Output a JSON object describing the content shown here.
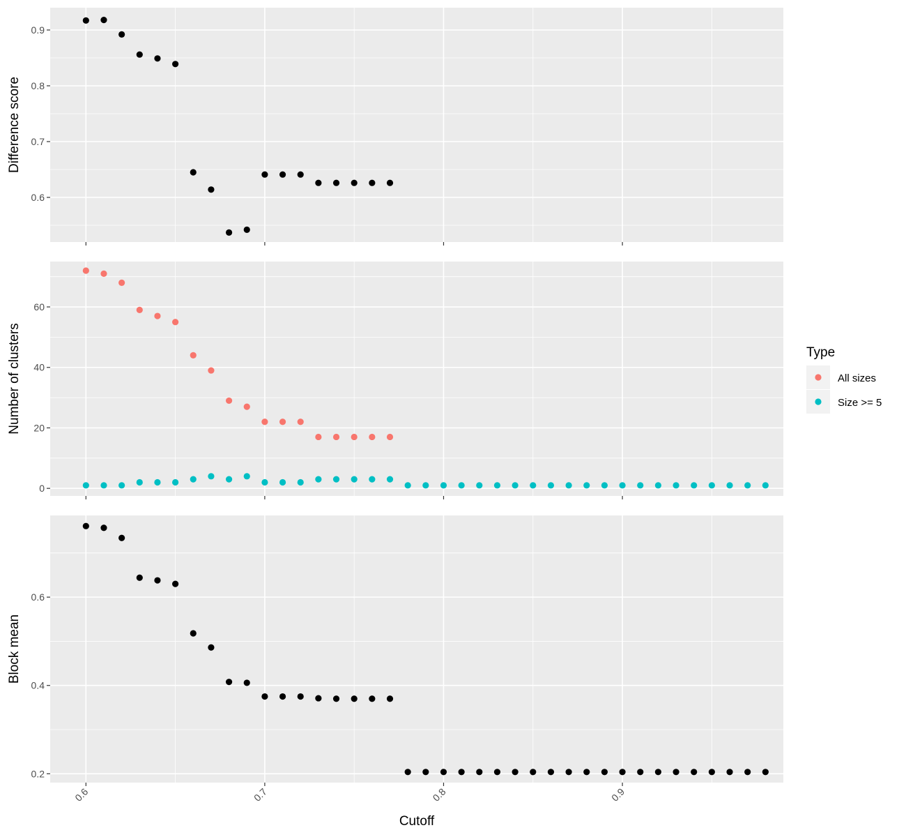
{
  "chart_data": [
    {
      "type": "scatter",
      "ylabel": "Difference score",
      "xlim": [
        0.58,
        0.99
      ],
      "ylim": [
        0.52,
        0.94
      ],
      "y_ticks": [
        0.6,
        0.7,
        0.8,
        0.9
      ],
      "y_tick_labels": [
        "0.6",
        "0.7",
        "0.8",
        "0.9"
      ],
      "series": [
        {
          "color": "#000000",
          "x": [
            0.6,
            0.61,
            0.62,
            0.63,
            0.64,
            0.65,
            0.66,
            0.67,
            0.68,
            0.69,
            0.7,
            0.71,
            0.72,
            0.73,
            0.74,
            0.75,
            0.76,
            0.77
          ],
          "y": [
            0.917,
            0.918,
            0.892,
            0.856,
            0.849,
            0.839,
            0.645,
            0.614,
            0.537,
            0.542,
            0.641,
            0.641,
            0.641,
            0.626,
            0.626,
            0.626,
            0.626,
            0.626
          ]
        }
      ]
    },
    {
      "type": "scatter",
      "ylabel": "Number of clusters",
      "xlim": [
        0.58,
        0.99
      ],
      "ylim": [
        -2.5,
        75
      ],
      "y_ticks": [
        0,
        20,
        40,
        60
      ],
      "y_tick_labels": [
        "0",
        "20",
        "40",
        "60"
      ],
      "legend": {
        "title": "Type",
        "position": "right"
      },
      "series": [
        {
          "name": "All sizes",
          "color": "#F8766D",
          "x": [
            0.6,
            0.61,
            0.62,
            0.63,
            0.64,
            0.65,
            0.66,
            0.67,
            0.68,
            0.69,
            0.7,
            0.71,
            0.72,
            0.73,
            0.74,
            0.75,
            0.76,
            0.77
          ],
          "y": [
            72,
            71,
            68,
            59,
            57,
            55,
            44,
            39,
            29,
            27,
            22,
            22,
            22,
            17,
            17,
            17,
            17,
            17
          ]
        },
        {
          "name": "Size >= 5",
          "color": "#00BFC4",
          "x": [
            0.6,
            0.61,
            0.62,
            0.63,
            0.64,
            0.65,
            0.66,
            0.67,
            0.68,
            0.69,
            0.7,
            0.71,
            0.72,
            0.73,
            0.74,
            0.75,
            0.76,
            0.77,
            0.78,
            0.79,
            0.8,
            0.81,
            0.82,
            0.83,
            0.84,
            0.85,
            0.86,
            0.87,
            0.88,
            0.89,
            0.9,
            0.91,
            0.92,
            0.93,
            0.94,
            0.95,
            0.96,
            0.97,
            0.98
          ],
          "y": [
            1,
            1,
            1,
            2,
            2,
            2,
            3,
            4,
            3,
            4,
            2,
            2,
            2,
            3,
            3,
            3,
            3,
            3,
            1,
            1,
            1,
            1,
            1,
            1,
            1,
            1,
            1,
            1,
            1,
            1,
            1,
            1,
            1,
            1,
            1,
            1,
            1,
            1,
            1
          ]
        }
      ]
    },
    {
      "type": "scatter",
      "ylabel": "Block mean",
      "xlabel": "Cutoff",
      "xlim": [
        0.58,
        0.99
      ],
      "ylim": [
        0.18,
        0.785
      ],
      "y_ticks": [
        0.2,
        0.4,
        0.6
      ],
      "y_tick_labels": [
        "0.2",
        "0.4",
        "0.6"
      ],
      "x_ticks": [
        0.6,
        0.7,
        0.8,
        0.9
      ],
      "x_tick_labels": [
        "0.6",
        "0.7",
        "0.8",
        "0.9"
      ],
      "series": [
        {
          "color": "#000000",
          "x": [
            0.6,
            0.61,
            0.62,
            0.63,
            0.64,
            0.65,
            0.66,
            0.67,
            0.68,
            0.69,
            0.7,
            0.71,
            0.72,
            0.73,
            0.74,
            0.75,
            0.76,
            0.77,
            0.78,
            0.79,
            0.8,
            0.81,
            0.82,
            0.83,
            0.84,
            0.85,
            0.86,
            0.87,
            0.88,
            0.89,
            0.9,
            0.91,
            0.92,
            0.93,
            0.94,
            0.95,
            0.96,
            0.97,
            0.98
          ],
          "y": [
            0.761,
            0.757,
            0.734,
            0.644,
            0.638,
            0.63,
            0.518,
            0.486,
            0.408,
            0.406,
            0.375,
            0.375,
            0.375,
            0.371,
            0.37,
            0.37,
            0.37,
            0.37,
            0.204,
            0.204,
            0.204,
            0.204,
            0.204,
            0.204,
            0.204,
            0.204,
            0.204,
            0.204,
            0.204,
            0.204,
            0.204,
            0.204,
            0.204,
            0.204,
            0.204,
            0.204,
            0.204,
            0.204,
            0.204
          ]
        }
      ]
    }
  ]
}
